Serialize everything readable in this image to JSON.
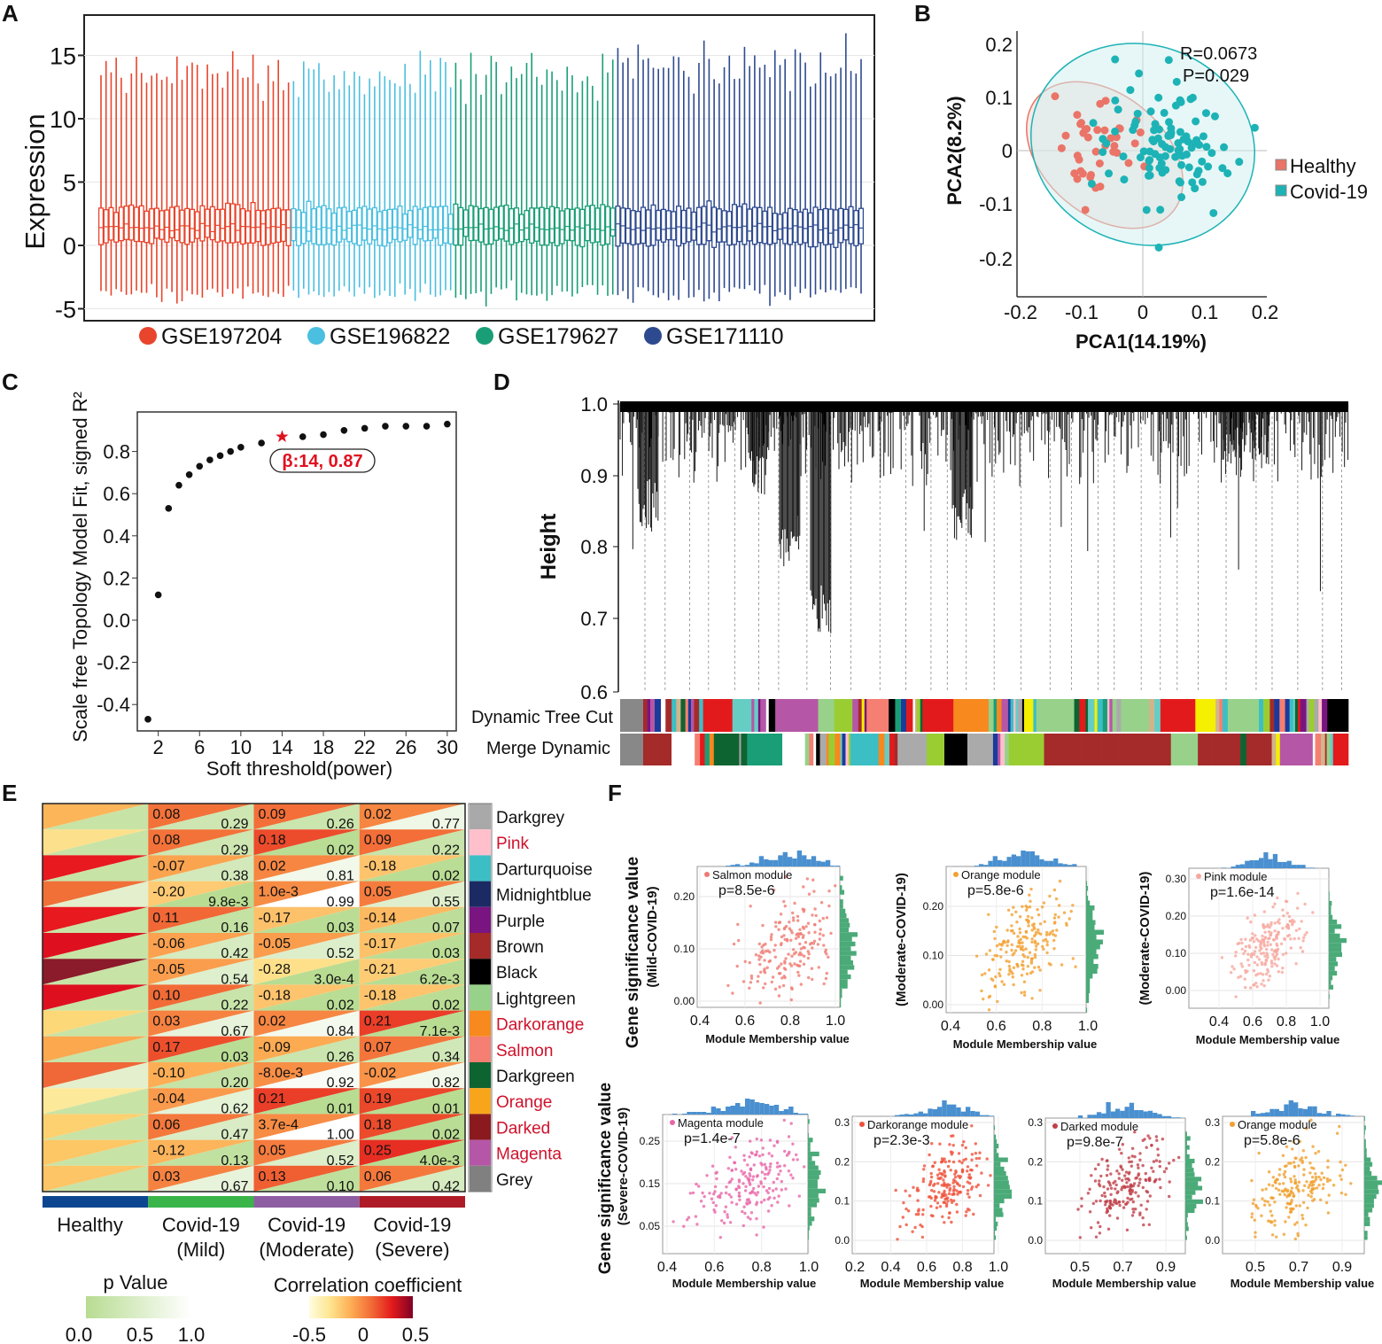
{
  "panel_labels": [
    "A",
    "B",
    "C",
    "D",
    "E",
    "F"
  ],
  "chart_data": [
    {
      "id": "A",
      "type": "box",
      "ylabel": "Expression",
      "yticks": [
        15,
        10,
        5,
        0,
        -5
      ],
      "ylim": [
        -5.5,
        16.5
      ],
      "series": [
        {
          "name": "GSE197204",
          "color": "#e8452c",
          "n_samples": 38
        },
        {
          "name": "GSE196822",
          "color": "#4bbfe0",
          "n_samples": 32
        },
        {
          "name": "GSE179627",
          "color": "#1a9e77",
          "n_samples": 32
        },
        {
          "name": "GSE171110",
          "color": "#2e4a8f",
          "n_samples": 49
        }
      ],
      "typical_box": {
        "whisker_low": -3.8,
        "q1": 0.2,
        "median": 1.4,
        "q3": 2.9,
        "whisker_high": 13.5
      }
    },
    {
      "id": "B",
      "type": "scatter",
      "xlabel": "PCA1(14.19%)",
      "ylabel": "PCA2(8.2%)",
      "xticks": [
        "-0.2",
        "-0.1",
        "0",
        "0.1",
        "0.2"
      ],
      "yticks": [
        "0.2",
        "0.1",
        "0",
        "-0.1",
        "-0.2"
      ],
      "xlim": [
        -0.2,
        0.2
      ],
      "ylim": [
        -0.2,
        0.2
      ],
      "annotations": [
        "R=0.0673",
        "P=0.029"
      ],
      "legend": [
        {
          "name": "Healthy",
          "color": "#ea7468",
          "center": [
            -0.07,
            0.0
          ],
          "n": 40
        },
        {
          "name": "Covid-19",
          "color": "#1db3b6",
          "center": [
            0.03,
            0.02
          ],
          "n": 100
        }
      ]
    },
    {
      "id": "C",
      "type": "scatter",
      "xlabel": "Soft threshold(power)",
      "ylabel": "Scale free Topology Model Fit, signed R²",
      "xticks": [
        2,
        6,
        10,
        14,
        18,
        22,
        26,
        30
      ],
      "yticks": [
        "0.8",
        "0.6",
        "0.4",
        "0.2",
        "0.0",
        "-0.2",
        "-0.4"
      ],
      "x": [
        1,
        2,
        3,
        4,
        5,
        6,
        7,
        8,
        9,
        10,
        12,
        14,
        16,
        18,
        20,
        22,
        24,
        26,
        28,
        30
      ],
      "y": [
        -0.47,
        0.12,
        0.53,
        0.64,
        0.69,
        0.73,
        0.76,
        0.78,
        0.8,
        0.82,
        0.84,
        0.87,
        0.87,
        0.88,
        0.9,
        0.91,
        0.92,
        0.92,
        0.92,
        0.93
      ],
      "highlight_index": 11,
      "highlight_color": "#e0101e",
      "annotation": "β:14, 0.87"
    },
    {
      "id": "D",
      "type": "dendrogram",
      "ylabel": "Height",
      "yticks": [
        "1.0",
        "0.9",
        "0.8",
        "0.7",
        "0.6"
      ],
      "row_labels": [
        "Dynamic Tree Cut",
        "Merge Dynamic"
      ]
    },
    {
      "id": "E",
      "type": "heatmap",
      "column_labels": [
        [
          "Healthy"
        ],
        [
          "Covid-19",
          "(Mild)"
        ],
        [
          "Covid-19",
          "(Moderate)"
        ],
        [
          "Covid-19",
          "(Severe)"
        ]
      ],
      "column_colors": [
        "#0d4690",
        "#39b54a",
        "#8e5ea2",
        "#ae1b27"
      ],
      "healthy_corr_colors": [
        "#fdb55a",
        "#fde08b",
        "#e8191f",
        "#f07038",
        "#e8191f",
        "#de1020",
        "#8b1a2a",
        "#de1020",
        "#fdd878",
        "#fba84f",
        "#f06838",
        "#fde99a",
        "#fdd070",
        "#fdc765",
        "#fdc565"
      ],
      "healthy_p_colors": [
        "#c8e3a6",
        "#c8e3a6",
        "#c8e3a6",
        "#e4efcd",
        "#c8e3a6",
        "#c8e3a6",
        "#c8e3a6",
        "#c8e3a6",
        "#c8e3a6",
        "#c8e3a6",
        "#e4efcd",
        "#c8e3a6",
        "#c8e3a6",
        "#c8e3a6",
        "#c8e3a6"
      ],
      "modules": [
        {
          "name": "Darkgrey",
          "color": "#a9a9a9",
          "highlight": false,
          "corr": [
            "0.08",
            "0.09",
            "0.02"
          ],
          "p": [
            "0.29",
            "0.26",
            "0.77"
          ]
        },
        {
          "name": "Pink",
          "color": "#ffc0cb",
          "highlight": true,
          "corr": [
            "0.08",
            "0.18",
            "0.09"
          ],
          "p": [
            "0.29",
            "0.02",
            "0.22"
          ]
        },
        {
          "name": "Darturquoise",
          "color": "#3bbfc5",
          "highlight": false,
          "corr": [
            "-0.07",
            "0.02",
            "-0.18"
          ],
          "p": [
            "0.38",
            "0.81",
            "0.02"
          ]
        },
        {
          "name": "Midnightblue",
          "color": "#1b2a63",
          "highlight": false,
          "corr": [
            "-0.20",
            "1.0e-3",
            "0.05"
          ],
          "p": [
            "9.8e-3",
            "0.99",
            "0.55"
          ]
        },
        {
          "name": "Purple",
          "color": "#7a1480",
          "highlight": false,
          "corr": [
            "0.11",
            "-0.17",
            "-0.14"
          ],
          "p": [
            "0.16",
            "0.03",
            "0.07"
          ]
        },
        {
          "name": "Brown",
          "color": "#a52a2a",
          "highlight": false,
          "corr": [
            "-0.06",
            "-0.05",
            "-0.17"
          ],
          "p": [
            "0.42",
            "0.52",
            "0.03"
          ]
        },
        {
          "name": "Black",
          "color": "#000000",
          "highlight": false,
          "corr": [
            "-0.05",
            "-0.28",
            "-0.21"
          ],
          "p": [
            "0.54",
            "3.0e-4",
            "6.2e-3"
          ]
        },
        {
          "name": "Lightgreen",
          "color": "#98d18a",
          "highlight": false,
          "corr": [
            "0.10",
            "-0.18",
            "-0.18"
          ],
          "p": [
            "0.22",
            "0.02",
            "0.02"
          ]
        },
        {
          "name": "Darkorange",
          "color": "#f7891e",
          "highlight": true,
          "corr": [
            "0.03",
            "0.02",
            "0.21"
          ],
          "p": [
            "0.67",
            "0.84",
            "7.1e-3"
          ]
        },
        {
          "name": "Salmon",
          "color": "#f47f72",
          "highlight": true,
          "corr": [
            "0.17",
            "-0.09",
            "0.07"
          ],
          "p": [
            "0.03",
            "0.26",
            "0.34"
          ]
        },
        {
          "name": "Darkgreen",
          "color": "#0e6431",
          "highlight": false,
          "corr": [
            "-0.10",
            "-8.0e-3",
            "-0.02"
          ],
          "p": [
            "0.20",
            "0.92",
            "0.82"
          ]
        },
        {
          "name": "Orange",
          "color": "#f8a51b",
          "highlight": true,
          "corr": [
            "-0.04",
            "0.21",
            "0.19"
          ],
          "p": [
            "0.62",
            "0.01",
            "0.01"
          ]
        },
        {
          "name": "Darked",
          "color": "#8b1a1e",
          "highlight": true,
          "corr": [
            "0.06",
            "3.7e-4",
            "0.18"
          ],
          "p": [
            "0.47",
            "1.00",
            "0.02"
          ]
        },
        {
          "name": "Magenta",
          "color": "#b557a6",
          "highlight": true,
          "corr": [
            "-0.12",
            "0.05",
            "0.25"
          ],
          "p": [
            "0.13",
            "0.52",
            "4.0e-3"
          ]
        },
        {
          "name": "Grey",
          "color": "#808080",
          "highlight": false,
          "corr": [
            "0.03",
            "0.13",
            "0.06"
          ],
          "p": [
            "0.67",
            "0.10",
            "0.42"
          ]
        }
      ],
      "highlight_color": "#d0112b",
      "p_legend": {
        "title": "p Value",
        "ticks": [
          "0.0",
          "0.5",
          "1.0"
        ],
        "colors": [
          "#b8dc92",
          "#ffffff"
        ]
      },
      "corr_legend": {
        "title": "Correlation coefficient",
        "ticks": [
          "-0.5",
          "0",
          "0.5"
        ],
        "colors": [
          "#fffde0",
          "#fee590",
          "#fdae55",
          "#f26b36",
          "#e31a1c",
          "#800026"
        ]
      }
    },
    {
      "id": "F",
      "type": "scatter",
      "ylabel": "Gene significance value",
      "xlabel": "Module Membership value",
      "top_hist_color": "#4a90d0",
      "right_hist_color": "#4aaa78",
      "subplots": [
        {
          "title": "Salmon module",
          "p": "p=8.5e-6",
          "color": "#ef7a72",
          "ylabel": "(Mild-COVID-19)",
          "xticks": [
            "0.4",
            "0.6",
            "0.8",
            "1.0"
          ],
          "yticks": [
            "0.00",
            "0.10",
            "0.20"
          ],
          "center": [
            0.8,
            0.11
          ]
        },
        {
          "title": "Orange module",
          "p": "p=5.8e-6",
          "color": "#f2a030",
          "ylabel": "(Moderate-COVID-19)",
          "xticks": [
            "0.4",
            "0.6",
            "0.8",
            "1.0"
          ],
          "yticks": [
            "0.00",
            "0.10",
            "0.20"
          ],
          "center": [
            0.72,
            0.12
          ]
        },
        {
          "title": "Pink module",
          "p": "p=1.6e-14",
          "color": "#f6a79e",
          "ylabel": "(Moderate-COVID-19)",
          "xticks": [
            "0.4",
            "0.6",
            "0.8",
            "1.0"
          ],
          "yticks": [
            "0.00",
            "0.10",
            "0.20",
            "0.30"
          ],
          "center": [
            0.7,
            0.12
          ]
        },
        {
          "title": "Magenta module",
          "p": "p=1.4e-7",
          "color": "#e866a8",
          "ylabel": "(Severe-COVID-19)",
          "xticks": [
            "0.4",
            "0.6",
            "0.8",
            "1.0"
          ],
          "yticks": [
            "0.05",
            "0.15",
            "0.25"
          ],
          "center": [
            0.75,
            0.16
          ]
        },
        {
          "title": "Darkorange module",
          "p": "p=2.3e-3",
          "color": "#f0503a",
          "ylabel": "",
          "xticks": [
            "0.2",
            "0.4",
            "0.6",
            "0.8",
            "1.0"
          ],
          "yticks": [
            "0.0",
            "0.1",
            "0.2",
            "0.3"
          ],
          "center": [
            0.72,
            0.15
          ]
        },
        {
          "title": "Darked module",
          "p": "p=9.8e-7",
          "color": "#c0404a",
          "ylabel": "",
          "xticks": [
            "0.5",
            "0.7",
            "0.9"
          ],
          "yticks": [
            "0.0",
            "0.1",
            "0.2",
            "0.3"
          ],
          "center": [
            0.72,
            0.14
          ]
        },
        {
          "title": "Orange module",
          "p": "p=5.8e-6",
          "color": "#f0a030",
          "ylabel": "",
          "xticks": [
            "0.5",
            "0.7",
            "0.9"
          ],
          "yticks": [
            "0.0",
            "0.1",
            "0.2",
            "0.3"
          ],
          "center": [
            0.7,
            0.13
          ]
        }
      ]
    }
  ]
}
